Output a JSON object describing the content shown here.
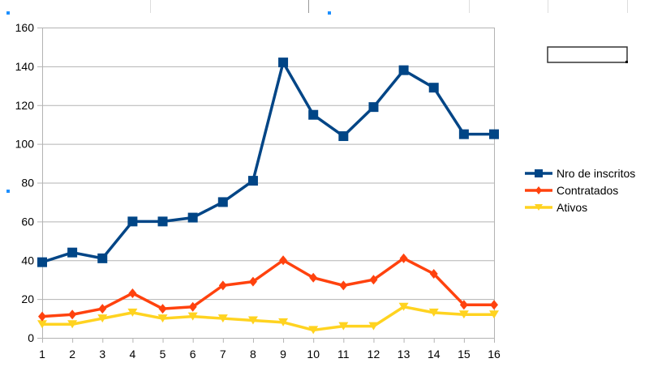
{
  "chart_data": {
    "type": "line",
    "title": "",
    "xlabel": "",
    "ylabel": "",
    "x": [
      1,
      2,
      3,
      4,
      5,
      6,
      7,
      8,
      9,
      10,
      11,
      12,
      13,
      14,
      15,
      16
    ],
    "ylim": [
      0,
      160
    ],
    "yticks": [
      0,
      20,
      40,
      60,
      80,
      100,
      120,
      140,
      160
    ],
    "grid": true,
    "legend_position": "right",
    "series": [
      {
        "name": "Nro de inscritos",
        "color": "#004586",
        "marker": "square",
        "values": [
          39,
          44,
          41,
          60,
          60,
          62,
          70,
          81,
          142,
          115,
          104,
          119,
          138,
          129,
          105,
          105
        ]
      },
      {
        "name": "Contratados",
        "color": "#ff420e",
        "marker": "diamond",
        "values": [
          11,
          12,
          15,
          23,
          15,
          16,
          27,
          29,
          40,
          31,
          27,
          30,
          41,
          33,
          17,
          17
        ]
      },
      {
        "name": "Ativos",
        "color": "#ffd320",
        "marker": "triangle-down",
        "values": [
          7,
          7,
          10,
          13,
          10,
          11,
          10,
          9,
          8,
          4,
          6,
          6,
          16,
          13,
          12,
          12
        ]
      }
    ]
  }
}
